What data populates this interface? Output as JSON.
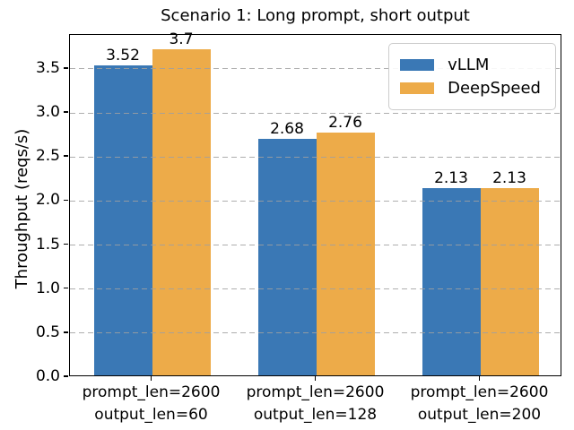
{
  "figure": {
    "title": "Scenario 1: Long prompt, short output",
    "ylabel": "Throughput (reqs/s)"
  },
  "legend": {
    "items": [
      {
        "label": "vLLM",
        "color": "#3a78b5"
      },
      {
        "label": "DeepSpeed",
        "color": "#edab49"
      }
    ],
    "position": "upper right"
  },
  "chart_data": {
    "type": "bar",
    "title": "Scenario 1: Long prompt, short output",
    "xlabel": "",
    "ylabel": "Throughput (reqs/s)",
    "categories": [
      [
        "prompt_len=2600",
        "output_len=60"
      ],
      [
        "prompt_len=2600",
        "output_len=128"
      ],
      [
        "prompt_len=2600",
        "output_len=200"
      ]
    ],
    "series": [
      {
        "name": "vLLM",
        "color": "#3a78b5",
        "values": [
          3.52,
          2.68,
          2.13
        ]
      },
      {
        "name": "DeepSpeed",
        "color": "#edab49",
        "values": [
          3.7,
          2.76,
          2.13
        ]
      }
    ],
    "ylim": [
      0,
      3.885
    ],
    "yticks": [
      0.0,
      0.5,
      1.0,
      1.5,
      2.0,
      2.5,
      3.0,
      3.5
    ],
    "ytick_labels": [
      "0.0",
      "0.5",
      "1.0",
      "1.5",
      "2.0",
      "2.5",
      "3.0",
      "3.5"
    ],
    "grid": "horizontal-dashed",
    "grid_above_bars": true,
    "legend_position": "upper right",
    "bar_value_labels": true
  }
}
